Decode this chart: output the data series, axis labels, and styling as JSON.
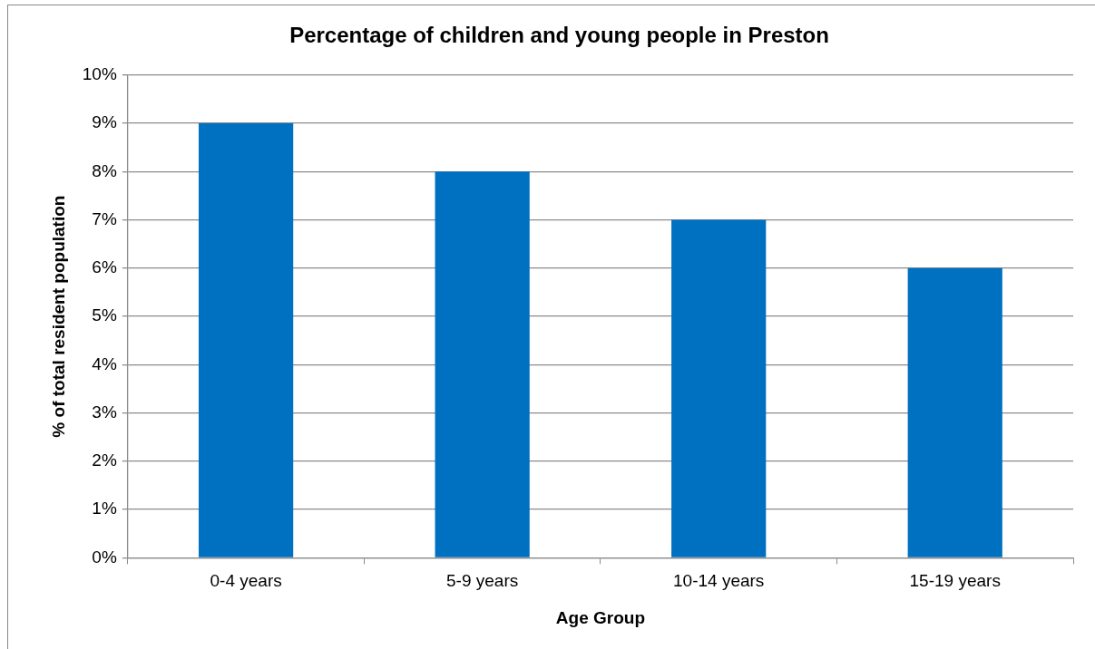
{
  "chart_data": {
    "type": "bar",
    "title": "Percentage of children and young people in Preston",
    "xlabel": "Age Group",
    "ylabel": "% of total resident population",
    "categories": [
      "0-4 years",
      "5-9 years",
      "10-14 years",
      "15-19 years"
    ],
    "values": [
      9,
      8,
      7,
      6
    ],
    "color": "#0070c0",
    "ylim": [
      0,
      10
    ],
    "yticks": [
      {
        "value": 0,
        "label": "0%"
      },
      {
        "value": 1,
        "label": "1%"
      },
      {
        "value": 2,
        "label": "2%"
      },
      {
        "value": 3,
        "label": "3%"
      },
      {
        "value": 4,
        "label": "4%"
      },
      {
        "value": 5,
        "label": "5%"
      },
      {
        "value": 6,
        "label": "6%"
      },
      {
        "value": 7,
        "label": "7%"
      },
      {
        "value": 8,
        "label": "8%"
      },
      {
        "value": 9,
        "label": "9%"
      },
      {
        "value": 10,
        "label": "10%"
      }
    ],
    "grid": "y",
    "legend": false
  }
}
